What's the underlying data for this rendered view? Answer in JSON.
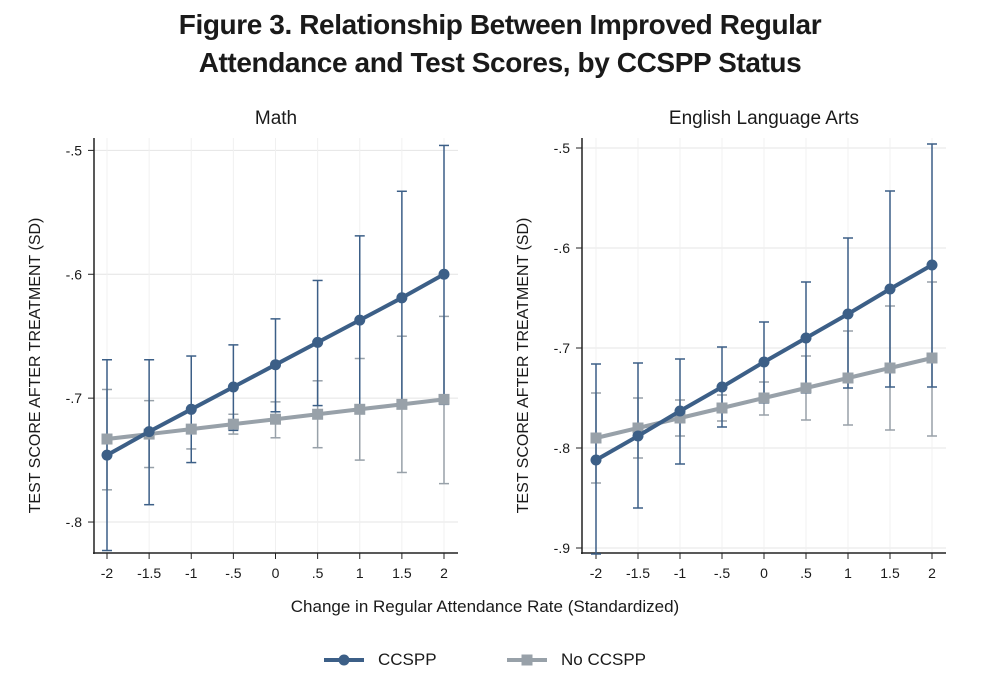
{
  "figure": {
    "title_line1": "Figure 3. Relationship Between Improved Regular",
    "title_line2": "Attendance and Test Scores, by CCSPP Status",
    "shared_xlabel": "Change in Regular Attendance Rate (Standardized)"
  },
  "legend": {
    "items": [
      {
        "label": "CCSPP",
        "color": "#3c5f87",
        "marker": "circle"
      },
      {
        "label": "No CCSPP",
        "color": "#98a1a9",
        "marker": "square"
      }
    ]
  },
  "chart_data": [
    {
      "type": "line",
      "title": "Math",
      "xlabel": "Change in Regular Attendance Rate (Standardized)",
      "ylabel": "TEST SCORE AFTER TREATMENT (SD)",
      "x": [
        -2,
        -1.5,
        -1,
        -0.5,
        0,
        0.5,
        1,
        1.5,
        2
      ],
      "x_tick_labels": [
        "-2",
        "-1.5",
        "-1",
        "-.5",
        "0",
        ".5",
        "1",
        "1.5",
        "2"
      ],
      "y_ticks": [
        -0.5,
        -0.6,
        -0.7,
        -0.8
      ],
      "y_tick_labels": [
        "-.5",
        "-.6",
        "-.7",
        "-.8"
      ],
      "ylim": [
        -0.825,
        -0.49
      ],
      "grid": true,
      "series": [
        {
          "name": "CCSPP",
          "color": "#3c5f87",
          "marker": "circle",
          "values": [
            -0.746,
            -0.727,
            -0.709,
            -0.691,
            -0.673,
            -0.655,
            -0.637,
            -0.619,
            -0.6
          ],
          "ci_low": [
            -0.823,
            -0.786,
            -0.752,
            -0.726,
            -0.711,
            -0.706,
            -0.706,
            -0.705,
            -0.705
          ],
          "ci_high": [
            -0.669,
            -0.669,
            -0.666,
            -0.657,
            -0.636,
            -0.605,
            -0.569,
            -0.533,
            -0.496
          ]
        },
        {
          "name": "No CCSPP",
          "color": "#98a1a9",
          "marker": "square",
          "values": [
            -0.733,
            -0.729,
            -0.725,
            -0.721,
            -0.717,
            -0.713,
            -0.709,
            -0.705,
            -0.701
          ],
          "ci_low": [
            -0.774,
            -0.756,
            -0.741,
            -0.729,
            -0.732,
            -0.74,
            -0.75,
            -0.76,
            -0.769
          ],
          "ci_high": [
            -0.693,
            -0.702,
            -0.709,
            -0.713,
            -0.703,
            -0.686,
            -0.668,
            -0.65,
            -0.634
          ]
        }
      ]
    },
    {
      "type": "line",
      "title": "English Language Arts",
      "xlabel": "Change in Regular Attendance Rate (Standardized)",
      "ylabel": "TEST SCORE AFTER TREATMENT (SD)",
      "x": [
        -2,
        -1.5,
        -1,
        -0.5,
        0,
        0.5,
        1,
        1.5,
        2
      ],
      "x_tick_labels": [
        "-2",
        "-1.5",
        "-1",
        "-.5",
        "0",
        ".5",
        "1",
        "1.5",
        "2"
      ],
      "y_ticks": [
        -0.5,
        -0.6,
        -0.7,
        -0.8,
        -0.9
      ],
      "y_tick_labels": [
        "-.5",
        "-.6",
        "-.7",
        "-.8",
        "-.9"
      ],
      "ylim": [
        -0.905,
        -0.49
      ],
      "grid": true,
      "series": [
        {
          "name": "CCSPP",
          "color": "#3c5f87",
          "marker": "circle",
          "values": [
            -0.812,
            -0.788,
            -0.763,
            -0.739,
            -0.714,
            -0.69,
            -0.666,
            -0.641,
            -0.617
          ],
          "ci_low": [
            -0.906,
            -0.86,
            -0.816,
            -0.779,
            -0.755,
            -0.745,
            -0.74,
            -0.739,
            -0.739
          ],
          "ci_high": [
            -0.716,
            -0.715,
            -0.711,
            -0.699,
            -0.674,
            -0.634,
            -0.59,
            -0.543,
            -0.496
          ]
        },
        {
          "name": "No CCSPP",
          "color": "#98a1a9",
          "marker": "square",
          "values": [
            -0.79,
            -0.78,
            -0.77,
            -0.76,
            -0.75,
            -0.74,
            -0.73,
            -0.72,
            -0.71
          ],
          "ci_low": [
            -0.835,
            -0.81,
            -0.788,
            -0.773,
            -0.767,
            -0.772,
            -0.777,
            -0.782,
            -0.788
          ],
          "ci_high": [
            -0.745,
            -0.75,
            -0.752,
            -0.747,
            -0.734,
            -0.708,
            -0.683,
            -0.658,
            -0.634
          ]
        }
      ]
    }
  ]
}
